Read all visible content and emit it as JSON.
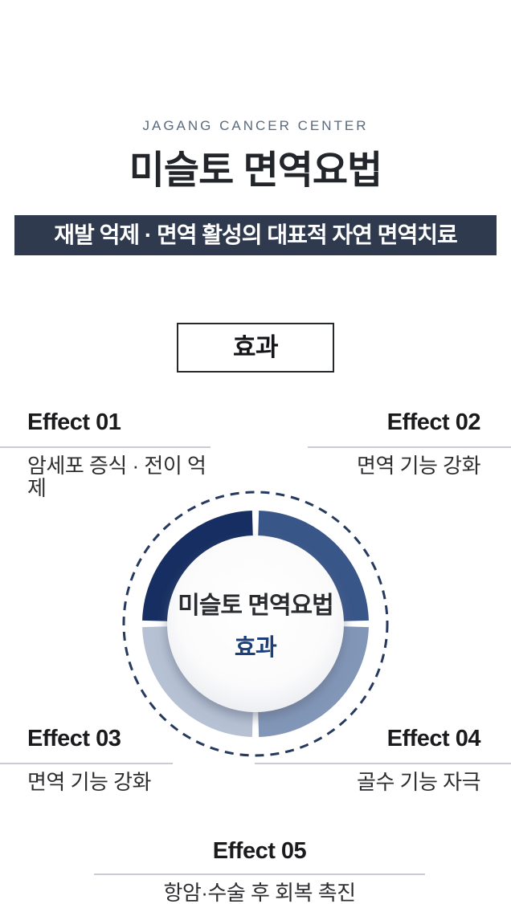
{
  "header": {
    "subtitle": "JAGANG CANCER CENTER",
    "title": "미슬토 면역요법",
    "banner": "재발 억제 · 면역 활성의 대표적 자연 면역치료"
  },
  "section": {
    "label": "효과"
  },
  "effects": [
    {
      "id": "Effect 01",
      "desc": "암세포 증식 · 전이 억제"
    },
    {
      "id": "Effect 02",
      "desc": "면역 기능 강화"
    },
    {
      "id": "Effect 03",
      "desc": "면역 기능 강화"
    },
    {
      "id": "Effect 04",
      "desc": "골수 기능 자극"
    },
    {
      "id": "Effect 05",
      "desc": "항암·수술 후 회복 촉진"
    }
  ],
  "diagram": {
    "center_title": "미슬토 면역요법",
    "center_label": "효과",
    "dashed_ring_color": "#26395e",
    "segments": [
      {
        "name": "effect-01",
        "quadrant": "top-left",
        "color": "#162e61"
      },
      {
        "name": "effect-02",
        "quadrant": "top-right",
        "color": "#395689"
      },
      {
        "name": "effect-03",
        "quadrant": "bottom-left",
        "color": "#b7c1d4"
      },
      {
        "name": "effect-04",
        "quadrant": "bottom-right",
        "color": "#8296b8"
      }
    ]
  },
  "colors": {
    "banner-bg": "#2f3a4f",
    "accent-navy": "#1c3f79",
    "dash-ring": "#26395e",
    "line": "#c9ccd2",
    "title-color": "#22252a",
    "eyebrow": "#5b6a7c"
  }
}
